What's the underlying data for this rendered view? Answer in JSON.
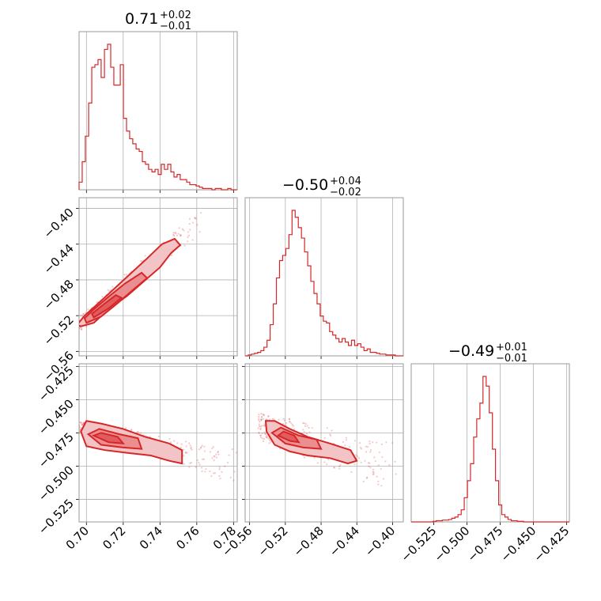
{
  "chart_data": {
    "type": "corner",
    "color": "#d62728",
    "fill_colors": [
      "#f3c4c5",
      "#ea8e90",
      "#e15c5f"
    ],
    "grid": true,
    "params": [
      {
        "range": [
          0.696,
          0.782
        ],
        "ticks": [
          0.7,
          0.72,
          0.74,
          0.76,
          0.78
        ],
        "tick_labels": [
          "0.70",
          "0.72",
          "0.74",
          "0.76",
          "0.78"
        ],
        "title": {
          "main": "0.71",
          "plus": "+0.02",
          "minus": "−0.01"
        }
      },
      {
        "range": [
          -0.565,
          -0.388
        ],
        "ticks": [
          -0.56,
          -0.52,
          -0.48,
          -0.44,
          -0.4
        ],
        "tick_labels": [
          "−0.56",
          "−0.52",
          "−0.48",
          "−0.44",
          "−0.40"
        ],
        "title": {
          "main": "−0.50",
          "plus": "+0.04",
          "minus": "−0.02"
        }
      },
      {
        "range": [
          -0.542,
          -0.423
        ],
        "ticks": [
          -0.525,
          -0.5,
          -0.475,
          -0.45,
          -0.425
        ],
        "tick_labels": [
          "−0.525",
          "−0.500",
          "−0.475",
          "−0.450",
          "−0.425"
        ],
        "title": {
          "main": "−0.49",
          "plus": "+0.01",
          "minus": "−0.01"
        }
      }
    ],
    "histograms": [
      {
        "param": 0,
        "bins": [
          0.696,
          0.6977,
          0.6994,
          0.7012,
          0.7029,
          0.7046,
          0.7063,
          0.708,
          0.7098,
          0.7115,
          0.7132,
          0.7149,
          0.7166,
          0.7184,
          0.7201,
          0.7218,
          0.7235,
          0.7252,
          0.727,
          0.7287,
          0.7304,
          0.7321,
          0.7338,
          0.7356,
          0.7373,
          0.739,
          0.7407,
          0.7424,
          0.7442,
          0.7459,
          0.7476,
          0.7493,
          0.751,
          0.7528,
          0.7545,
          0.7562,
          0.7579,
          0.7596,
          0.7614,
          0.7631,
          0.7648,
          0.7665,
          0.7682,
          0.77,
          0.7717,
          0.7734,
          0.7751,
          0.7768,
          0.7786,
          0.7803,
          0.782
        ],
        "counts": [
          3,
          11,
          21,
          34,
          48,
          49,
          51,
          44,
          55,
          57,
          48,
          41,
          41,
          49,
          28,
          23,
          20,
          18,
          16,
          15,
          11,
          10,
          8,
          7,
          8,
          6,
          10,
          8,
          10,
          7,
          5,
          6,
          4,
          4,
          3,
          2,
          2,
          1.5,
          1,
          0.5,
          0.5,
          0.5,
          0,
          0.5,
          0.5,
          0,
          0,
          0.5,
          0,
          0
        ]
      },
      {
        "param": 1,
        "bins": [
          -0.565,
          -0.5615,
          -0.558,
          -0.5545,
          -0.551,
          -0.5475,
          -0.544,
          -0.5405,
          -0.537,
          -0.5335,
          -0.53,
          -0.5265,
          -0.523,
          -0.5195,
          -0.516,
          -0.5125,
          -0.509,
          -0.5055,
          -0.502,
          -0.4985,
          -0.495,
          -0.4915,
          -0.488,
          -0.4845,
          -0.481,
          -0.4775,
          -0.474,
          -0.4705,
          -0.467,
          -0.4635,
          -0.46,
          -0.4565,
          -0.453,
          -0.4495,
          -0.446,
          -0.4425,
          -0.439,
          -0.4355,
          -0.432,
          -0.4285,
          -0.425,
          -0.4215,
          -0.418,
          -0.4145,
          -0.411,
          -0.4075,
          -0.404,
          -0.4005,
          -0.397,
          -0.3935,
          -0.388
        ],
        "counts": [
          0,
          0.5,
          1,
          1.5,
          2,
          3,
          5,
          9,
          18,
          30,
          45,
          55,
          58,
          62,
          70,
          84,
          80,
          74,
          68,
          60,
          52,
          43,
          36,
          30,
          23,
          20,
          19,
          14,
          12,
          10,
          8,
          10,
          8,
          6,
          9,
          6,
          7,
          5,
          3,
          4,
          2,
          2,
          1.5,
          1,
          1,
          0.5,
          0.5,
          0.5,
          0,
          0
        ]
      },
      {
        "param": 2,
        "bins": [
          -0.542,
          -0.5397,
          -0.5373,
          -0.535,
          -0.5326,
          -0.5303,
          -0.5279,
          -0.5256,
          -0.5232,
          -0.5209,
          -0.5185,
          -0.5162,
          -0.5138,
          -0.5115,
          -0.5091,
          -0.5068,
          -0.5044,
          -0.5021,
          -0.4997,
          -0.4974,
          -0.495,
          -0.4927,
          -0.4903,
          -0.488,
          -0.4856,
          -0.4833,
          -0.4809,
          -0.4786,
          -0.4762,
          -0.4739,
          -0.4715,
          -0.4692,
          -0.4668,
          -0.4645,
          -0.4621,
          -0.4598,
          -0.4574,
          -0.4551,
          -0.4527,
          -0.4504,
          -0.448,
          -0.4457,
          -0.4433,
          -0.441,
          -0.4386,
          -0.4363,
          -0.4339,
          -0.4316,
          -0.4292,
          -0.4269,
          -0.423
        ],
        "counts": [
          0,
          0,
          0,
          0,
          0,
          0,
          0,
          0.5,
          1,
          1,
          1.5,
          1.5,
          2,
          3,
          4,
          6,
          10,
          20,
          34,
          48,
          70,
          85,
          98,
          120,
          112,
          90,
          60,
          34,
          14,
          6,
          4,
          2,
          1,
          1,
          0.5,
          0.5,
          0,
          0,
          0,
          0,
          0,
          0,
          0,
          0,
          0,
          0,
          0,
          0,
          0,
          0
        ]
      }
    ],
    "pairs": [
      {
        "x_param": 0,
        "y_param": 1,
        "contours": [
          [
            [
              0.697,
              -0.532
            ],
            [
              0.704,
              -0.528
            ],
            [
              0.712,
              -0.513
            ],
            [
              0.722,
              -0.498
            ],
            [
              0.731,
              -0.482
            ],
            [
              0.74,
              -0.466
            ],
            [
              0.746,
              -0.45
            ],
            [
              0.751,
              -0.441
            ],
            [
              0.748,
              -0.434
            ],
            [
              0.741,
              -0.44
            ],
            [
              0.733,
              -0.456
            ],
            [
              0.724,
              -0.473
            ],
            [
              0.715,
              -0.49
            ],
            [
              0.706,
              -0.507
            ],
            [
              0.699,
              -0.52
            ],
            [
              0.695,
              -0.53
            ]
          ],
          [
            [
              0.7,
              -0.528
            ],
            [
              0.708,
              -0.521
            ],
            [
              0.717,
              -0.506
            ],
            [
              0.726,
              -0.49
            ],
            [
              0.733,
              -0.478
            ],
            [
              0.73,
              -0.472
            ],
            [
              0.721,
              -0.484
            ],
            [
              0.712,
              -0.499
            ],
            [
              0.704,
              -0.513
            ],
            [
              0.699,
              -0.523
            ]
          ],
          [
            [
              0.704,
              -0.522
            ],
            [
              0.712,
              -0.512
            ],
            [
              0.719,
              -0.5
            ],
            [
              0.716,
              -0.497
            ],
            [
              0.709,
              -0.508
            ],
            [
              0.703,
              -0.518
            ]
          ]
        ],
        "points_center": [
          [
            0.696,
            -0.53
          ],
          [
            0.762,
            -0.412
          ]
        ],
        "points_spread": 0.012
      },
      {
        "x_param": 0,
        "y_param": 2,
        "contours": [
          [
            [
              0.697,
              -0.474
            ],
            [
              0.7,
              -0.485
            ],
            [
              0.71,
              -0.488
            ],
            [
              0.722,
              -0.49
            ],
            [
              0.735,
              -0.492
            ],
            [
              0.745,
              -0.496
            ],
            [
              0.752,
              -0.498
            ],
            [
              0.752,
              -0.488
            ],
            [
              0.745,
              -0.483
            ],
            [
              0.732,
              -0.478
            ],
            [
              0.72,
              -0.472
            ],
            [
              0.708,
              -0.468
            ],
            [
              0.7,
              -0.466
            ]
          ],
          [
            [
              0.701,
              -0.476
            ],
            [
              0.708,
              -0.484
            ],
            [
              0.72,
              -0.486
            ],
            [
              0.73,
              -0.487
            ],
            [
              0.728,
              -0.479
            ],
            [
              0.718,
              -0.476
            ],
            [
              0.707,
              -0.472
            ]
          ],
          [
            [
              0.704,
              -0.477
            ],
            [
              0.712,
              -0.482
            ],
            [
              0.72,
              -0.483
            ],
            [
              0.717,
              -0.478
            ],
            [
              0.708,
              -0.475
            ]
          ]
        ],
        "points_center": [
          [
            0.696,
            -0.47
          ],
          [
            0.78,
            -0.5
          ]
        ],
        "points_spread": 0.012
      },
      {
        "x_param": 1,
        "y_param": 2,
        "contours": [
          [
            [
              -0.541,
              -0.474
            ],
            [
              -0.532,
              -0.484
            ],
            [
              -0.515,
              -0.489
            ],
            [
              -0.495,
              -0.492
            ],
            [
              -0.47,
              -0.494
            ],
            [
              -0.45,
              -0.498
            ],
            [
              -0.44,
              -0.496
            ],
            [
              -0.447,
              -0.488
            ],
            [
              -0.47,
              -0.483
            ],
            [
              -0.495,
              -0.478
            ],
            [
              -0.515,
              -0.472
            ],
            [
              -0.532,
              -0.466
            ],
            [
              -0.542,
              -0.466
            ]
          ],
          [
            [
              -0.535,
              -0.475
            ],
            [
              -0.52,
              -0.483
            ],
            [
              -0.5,
              -0.486
            ],
            [
              -0.48,
              -0.487
            ],
            [
              -0.485,
              -0.48
            ],
            [
              -0.505,
              -0.477
            ],
            [
              -0.525,
              -0.471
            ]
          ],
          [
            [
              -0.528,
              -0.477
            ],
            [
              -0.515,
              -0.481
            ],
            [
              -0.505,
              -0.482
            ],
            [
              -0.51,
              -0.477
            ],
            [
              -0.522,
              -0.474
            ]
          ]
        ],
        "points_center": [
          [
            -0.55,
            -0.47
          ],
          [
            -0.4,
            -0.5
          ]
        ],
        "points_spread": 0.02
      }
    ]
  }
}
